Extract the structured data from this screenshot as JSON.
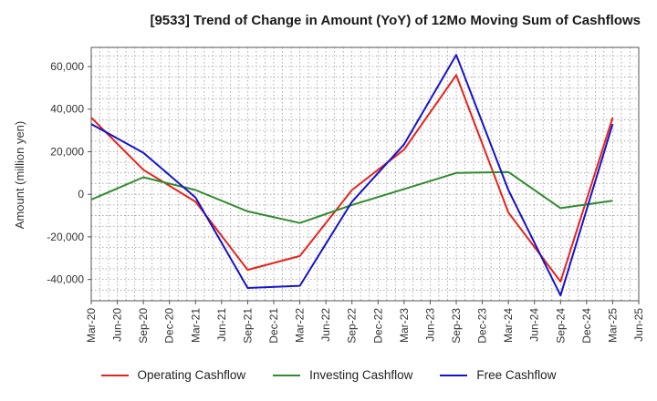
{
  "chart_data": {
    "type": "line",
    "title": "[9533]  Trend of Change in Amount (YoY) of 12Mo Moving Sum of Cashflows",
    "xlabel": "",
    "ylabel": "Amount (million yen)",
    "ylim": [
      -50000,
      69000
    ],
    "yticks": [
      -40000,
      -20000,
      0,
      20000,
      40000,
      60000
    ],
    "ytick_labels": [
      "-40,000",
      "-20,000",
      "0",
      "20,000",
      "40,000",
      "60,000"
    ],
    "categories": [
      "Mar-20",
      "Jun-20",
      "Sep-20",
      "Dec-20",
      "Mar-21",
      "Jun-21",
      "Sep-21",
      "Dec-21",
      "Mar-22",
      "Jun-22",
      "Sep-22",
      "Dec-22",
      "Mar-23",
      "Jun-23",
      "Sep-23",
      "Dec-23",
      "Mar-24",
      "Jun-24",
      "Sep-24",
      "Dec-24",
      "Mar-25",
      "Jun-25"
    ],
    "grid": true,
    "legend_position": "bottom",
    "series": [
      {
        "name": "Operating Cashflow",
        "color": "#e8231b",
        "points": [
          [
            0,
            36000
          ],
          [
            2,
            11500
          ],
          [
            4,
            -3500
          ],
          [
            6,
            -35500
          ],
          [
            8,
            -29000
          ],
          [
            10,
            2000
          ],
          [
            12,
            21000
          ],
          [
            14,
            56000
          ],
          [
            16,
            -8500
          ],
          [
            18,
            -41000
          ],
          [
            20,
            36000
          ]
        ]
      },
      {
        "name": "Investing Cashflow",
        "color": "#2e8b2e",
        "points": [
          [
            0,
            -2500
          ],
          [
            2,
            8000
          ],
          [
            4,
            2000
          ],
          [
            6,
            -8000
          ],
          [
            8,
            -13500
          ],
          [
            10,
            -5000
          ],
          [
            12,
            2500
          ],
          [
            14,
            10000
          ],
          [
            16,
            10500
          ],
          [
            18,
            -6500
          ],
          [
            20,
            -3000
          ]
        ]
      },
      {
        "name": "Free Cashflow",
        "color": "#1414cc",
        "points": [
          [
            0,
            33000
          ],
          [
            2,
            19500
          ],
          [
            4,
            -1500
          ],
          [
            6,
            -44000
          ],
          [
            8,
            -43000
          ],
          [
            10,
            -3500
          ],
          [
            12,
            23500
          ],
          [
            14,
            65500
          ],
          [
            16,
            2000
          ],
          [
            18,
            -47500
          ],
          [
            20,
            33000
          ]
        ]
      }
    ]
  }
}
